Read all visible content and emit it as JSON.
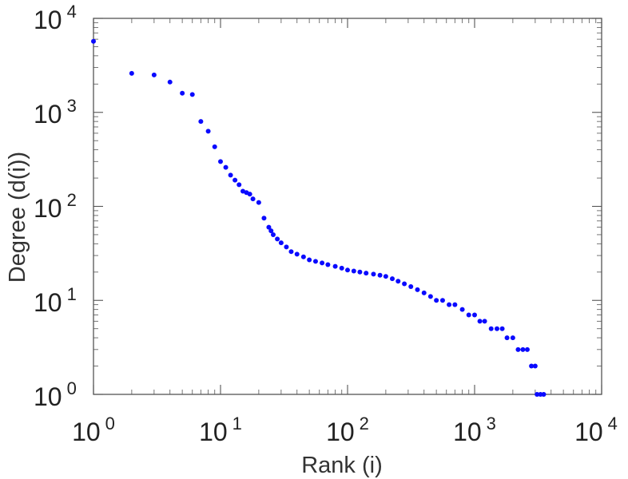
{
  "chart_data": {
    "type": "scatter",
    "xlabel": "Rank (i)",
    "ylabel": "Degree (d(i))",
    "xscale": "log",
    "yscale": "log",
    "xlim": [
      1,
      10000
    ],
    "ylim": [
      1,
      10000
    ],
    "grid": false,
    "marker_color": "#0a0aff",
    "x_ticks": [
      {
        "base": "10",
        "exp": "0"
      },
      {
        "base": "10",
        "exp": "1"
      },
      {
        "base": "10",
        "exp": "2"
      },
      {
        "base": "10",
        "exp": "3"
      },
      {
        "base": "10",
        "exp": "4"
      }
    ],
    "y_ticks": [
      {
        "base": "10",
        "exp": "0"
      },
      {
        "base": "10",
        "exp": "1"
      },
      {
        "base": "10",
        "exp": "2"
      },
      {
        "base": "10",
        "exp": "3"
      },
      {
        "base": "10",
        "exp": "4"
      }
    ],
    "x": [
      1,
      2,
      3,
      4,
      5,
      6,
      7,
      8,
      9,
      10,
      11,
      12,
      13,
      14,
      15,
      16,
      17,
      18,
      20,
      22,
      24,
      25,
      26,
      28,
      30,
      33,
      36,
      40,
      45,
      50,
      56,
      63,
      70,
      80,
      90,
      100,
      112,
      125,
      140,
      160,
      180,
      200,
      225,
      250,
      280,
      315,
      355,
      400,
      450,
      500,
      560,
      630,
      700,
      800,
      900,
      1000,
      1100,
      1200,
      1350,
      1500,
      1650,
      1800,
      2000,
      2200,
      2400,
      2600,
      2800,
      3000,
      3100,
      3300,
      3500
    ],
    "y": [
      5700,
      2600,
      2500,
      2100,
      1600,
      1550,
      800,
      630,
      430,
      300,
      260,
      215,
      190,
      170,
      145,
      140,
      135,
      120,
      110,
      75,
      60,
      55,
      50,
      45,
      41,
      37,
      33,
      31,
      29,
      27,
      26,
      25,
      24,
      23,
      22,
      21,
      20.5,
      20,
      19.5,
      19,
      18.5,
      18,
      17,
      16,
      15,
      14,
      13,
      12,
      11,
      10,
      10,
      9,
      9,
      8,
      7,
      7,
      6,
      6,
      5,
      5,
      5,
      4,
      4,
      3,
      3,
      3,
      2,
      2,
      1,
      1,
      1
    ]
  }
}
